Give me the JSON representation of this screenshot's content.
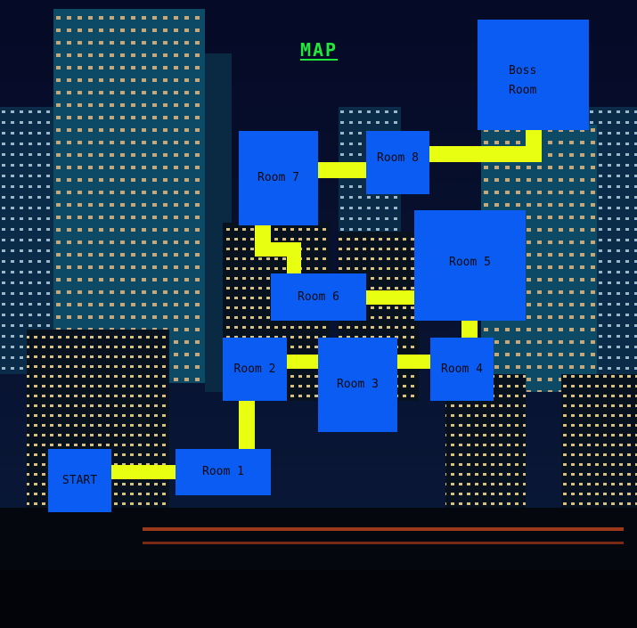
{
  "map": {
    "title": "MAP",
    "rooms": {
      "start": "START",
      "room1": "Room 1",
      "room2": "Room 2",
      "room3": "Room 3",
      "room4": "Room 4",
      "room5": "Room 5",
      "room6": "Room 6",
      "room7": "Room 7",
      "room8": "Room 8",
      "boss": "Boss\nRoom"
    }
  },
  "colors": {
    "room": "#0a5cf2",
    "corridor": "#e8ff12",
    "title": "#22e83c",
    "sky": "#060a22"
  }
}
